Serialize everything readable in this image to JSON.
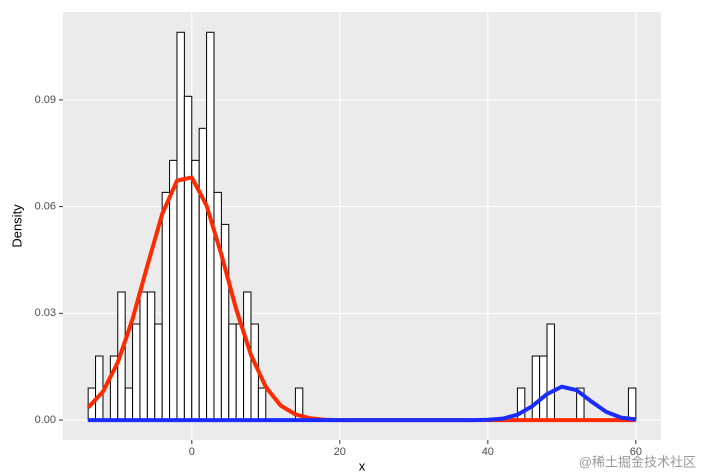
{
  "chart_data": {
    "type": "histogram",
    "x_label": "x",
    "y_label": "Density",
    "bins": [
      -14,
      -13,
      -12,
      -11,
      -10,
      -9,
      -8,
      -7,
      -6,
      -5,
      -4,
      -3,
      -2,
      -1,
      0,
      1,
      2,
      3,
      4,
      5,
      6,
      7,
      8,
      9,
      10,
      11,
      12,
      13,
      14,
      15,
      16,
      17,
      18,
      19,
      20,
      21,
      22,
      23,
      24,
      25,
      26,
      27,
      28,
      29,
      30,
      31,
      32,
      33,
      34,
      35,
      36,
      37,
      38,
      39,
      40,
      41,
      42,
      43,
      44,
      45,
      46,
      47,
      48,
      49,
      50,
      51,
      52,
      53,
      54,
      55,
      56,
      57,
      58,
      59,
      60
    ],
    "values": [
      0.009,
      0.018,
      0,
      0.018,
      0.036,
      0.009,
      0.027,
      0.036,
      0.036,
      0.027,
      0.064,
      0.073,
      0.109,
      0.091,
      0.073,
      0.082,
      0.109,
      0.064,
      0.055,
      0.027,
      0.027,
      0.036,
      0.027,
      0.009,
      0,
      0,
      0,
      0,
      0.009,
      0,
      0,
      0,
      0,
      0,
      0,
      0,
      0,
      0,
      0,
      0,
      0,
      0,
      0,
      0,
      0,
      0,
      0,
      0,
      0,
      0,
      0,
      0,
      0,
      0,
      0,
      0,
      0,
      0,
      0.009,
      0,
      0.018,
      0.018,
      0.027,
      0,
      0,
      0,
      0.009,
      0,
      0,
      0,
      0,
      0,
      0,
      0.009
    ],
    "bar_fill": "#ffffff",
    "bar_edge": "#000000",
    "curves": {
      "x": [
        -14,
        -12,
        -10,
        -8,
        -6,
        -4,
        -2,
        0,
        2,
        4,
        6,
        8,
        10,
        12,
        14,
        16,
        18,
        20,
        22,
        24,
        26,
        28,
        30,
        32,
        34,
        36,
        38,
        40,
        42,
        44,
        46,
        48,
        50,
        52,
        54,
        56,
        58,
        60
      ],
      "series": [
        {
          "color": "#ff2a00",
          "values": [
            0.0035,
            0.008,
            0.0162,
            0.0284,
            0.0434,
            0.0579,
            0.0673,
            0.0682,
            0.0603,
            0.0465,
            0.0312,
            0.0183,
            0.0093,
            0.0041,
            0.0016,
            0.0005,
            0.0001,
            0,
            0,
            0,
            0,
            0,
            0,
            0,
            0,
            0,
            0,
            0,
            0,
            0,
            0,
            0,
            0,
            0,
            0,
            0,
            0,
            0
          ]
        },
        {
          "color": "#1a2cff",
          "values": [
            0,
            0,
            0,
            0,
            0,
            0,
            0,
            0,
            0,
            0,
            0,
            0,
            0,
            0,
            0,
            0,
            0,
            0,
            0,
            0,
            0,
            0,
            0,
            0,
            0,
            0,
            0,
            0.0001,
            0.0004,
            0.0015,
            0.0039,
            0.0073,
            0.0094,
            0.0084,
            0.0052,
            0.0023,
            0.0007,
            0.0002
          ]
        }
      ]
    },
    "xlim": [
      -17.4,
      63.4
    ],
    "ylim": [
      -0.0056,
      0.1147
    ],
    "xticks": [
      0,
      20,
      40,
      60
    ],
    "yticks": [
      {
        "value": 0,
        "label": "0.00"
      },
      {
        "value": 0.03,
        "label": "0.03"
      },
      {
        "value": 0.06,
        "label": "0.06"
      },
      {
        "value": 0.09,
        "label": "0.09"
      }
    ],
    "grid": true,
    "watermark": "@稀土掘金技术社区"
  }
}
